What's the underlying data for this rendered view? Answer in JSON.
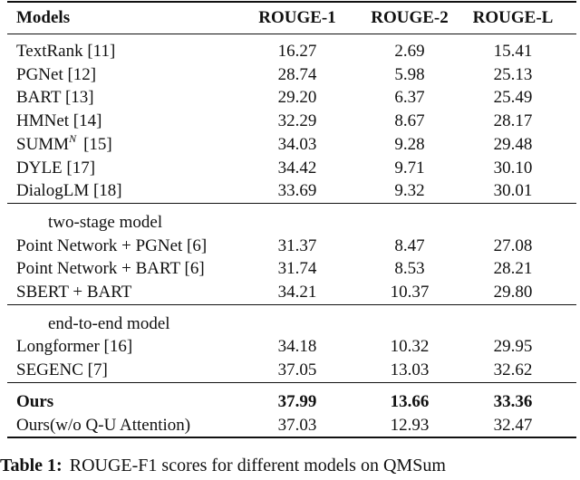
{
  "table": {
    "header": [
      "Models",
      "ROUGE-1",
      "ROUGE-2",
      "ROUGE-L"
    ],
    "groups": [
      {
        "rows": [
          {
            "model": "TextRank [11]",
            "scores": [
              "16.27",
              "2.69",
              "15.41"
            ]
          },
          {
            "model": "PGNet [12]",
            "scores": [
              "28.74",
              "5.98",
              "25.13"
            ]
          },
          {
            "model": "BART [13]",
            "scores": [
              "29.20",
              "6.37",
              "25.49"
            ]
          },
          {
            "model": "HMNet [14]",
            "scores": [
              "32.29",
              "8.67",
              "28.17"
            ]
          },
          {
            "model": "SUMM",
            "model_sup": "N",
            "model_ref": "[15]",
            "scores": [
              "34.03",
              "9.28",
              "29.48"
            ]
          },
          {
            "model": "DYLE [17]",
            "scores": [
              "34.42",
              "9.71",
              "30.10"
            ]
          },
          {
            "model": "DialogLM [18]",
            "scores": [
              "33.69",
              "9.32",
              "30.01"
            ]
          }
        ]
      },
      {
        "label": "two-stage model",
        "rows": [
          {
            "model": "Point Network + PGNet [6]",
            "scores": [
              "31.37",
              "8.47",
              "27.08"
            ]
          },
          {
            "model": "Point Network + BART [6]",
            "scores": [
              "31.74",
              "8.53",
              "28.21"
            ]
          },
          {
            "model": "SBERT + BART",
            "scores": [
              "34.21",
              "10.37",
              "29.80"
            ]
          }
        ]
      },
      {
        "label": "end-to-end model",
        "rows": [
          {
            "model": "Longformer [16]",
            "scores": [
              "34.18",
              "10.32",
              "29.95"
            ]
          },
          {
            "model": "SEGENC [7]",
            "scores": [
              "37.05",
              "13.03",
              "32.62"
            ]
          }
        ]
      },
      {
        "rows": [
          {
            "model": "Ours",
            "bold": true,
            "scores": [
              "37.99",
              "13.66",
              "33.36"
            ]
          },
          {
            "model": "Ours(w/o Q-U Attention)",
            "scores": [
              "37.03",
              "12.93",
              "32.47"
            ]
          }
        ]
      }
    ]
  },
  "caption": {
    "label": "Table 1:",
    "text": "ROUGE-F1 scores for different models on QMSum"
  }
}
